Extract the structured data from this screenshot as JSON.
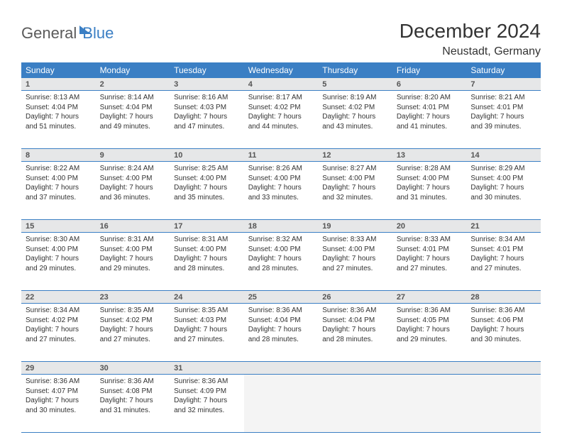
{
  "logo": {
    "part1": "General",
    "part2": "Blue"
  },
  "title": "December 2024",
  "subtitle": "Neustadt, Germany",
  "header_bg": "#3b7fc4",
  "header_fg": "#ffffff",
  "daynum_bg": "#e6e7e8",
  "row_border": "#3b7fc4",
  "font_family": "Arial",
  "columns": [
    "Sunday",
    "Monday",
    "Tuesday",
    "Wednesday",
    "Thursday",
    "Friday",
    "Saturday"
  ],
  "weeks": [
    [
      {
        "n": "1",
        "sunrise": "Sunrise: 8:13 AM",
        "sunset": "Sunset: 4:04 PM",
        "day": "Daylight: 7 hours and 51 minutes."
      },
      {
        "n": "2",
        "sunrise": "Sunrise: 8:14 AM",
        "sunset": "Sunset: 4:04 PM",
        "day": "Daylight: 7 hours and 49 minutes."
      },
      {
        "n": "3",
        "sunrise": "Sunrise: 8:16 AM",
        "sunset": "Sunset: 4:03 PM",
        "day": "Daylight: 7 hours and 47 minutes."
      },
      {
        "n": "4",
        "sunrise": "Sunrise: 8:17 AM",
        "sunset": "Sunset: 4:02 PM",
        "day": "Daylight: 7 hours and 44 minutes."
      },
      {
        "n": "5",
        "sunrise": "Sunrise: 8:19 AM",
        "sunset": "Sunset: 4:02 PM",
        "day": "Daylight: 7 hours and 43 minutes."
      },
      {
        "n": "6",
        "sunrise": "Sunrise: 8:20 AM",
        "sunset": "Sunset: 4:01 PM",
        "day": "Daylight: 7 hours and 41 minutes."
      },
      {
        "n": "7",
        "sunrise": "Sunrise: 8:21 AM",
        "sunset": "Sunset: 4:01 PM",
        "day": "Daylight: 7 hours and 39 minutes."
      }
    ],
    [
      {
        "n": "8",
        "sunrise": "Sunrise: 8:22 AM",
        "sunset": "Sunset: 4:00 PM",
        "day": "Daylight: 7 hours and 37 minutes."
      },
      {
        "n": "9",
        "sunrise": "Sunrise: 8:24 AM",
        "sunset": "Sunset: 4:00 PM",
        "day": "Daylight: 7 hours and 36 minutes."
      },
      {
        "n": "10",
        "sunrise": "Sunrise: 8:25 AM",
        "sunset": "Sunset: 4:00 PM",
        "day": "Daylight: 7 hours and 35 minutes."
      },
      {
        "n": "11",
        "sunrise": "Sunrise: 8:26 AM",
        "sunset": "Sunset: 4:00 PM",
        "day": "Daylight: 7 hours and 33 minutes."
      },
      {
        "n": "12",
        "sunrise": "Sunrise: 8:27 AM",
        "sunset": "Sunset: 4:00 PM",
        "day": "Daylight: 7 hours and 32 minutes."
      },
      {
        "n": "13",
        "sunrise": "Sunrise: 8:28 AM",
        "sunset": "Sunset: 4:00 PM",
        "day": "Daylight: 7 hours and 31 minutes."
      },
      {
        "n": "14",
        "sunrise": "Sunrise: 8:29 AM",
        "sunset": "Sunset: 4:00 PM",
        "day": "Daylight: 7 hours and 30 minutes."
      }
    ],
    [
      {
        "n": "15",
        "sunrise": "Sunrise: 8:30 AM",
        "sunset": "Sunset: 4:00 PM",
        "day": "Daylight: 7 hours and 29 minutes."
      },
      {
        "n": "16",
        "sunrise": "Sunrise: 8:31 AM",
        "sunset": "Sunset: 4:00 PM",
        "day": "Daylight: 7 hours and 29 minutes."
      },
      {
        "n": "17",
        "sunrise": "Sunrise: 8:31 AM",
        "sunset": "Sunset: 4:00 PM",
        "day": "Daylight: 7 hours and 28 minutes."
      },
      {
        "n": "18",
        "sunrise": "Sunrise: 8:32 AM",
        "sunset": "Sunset: 4:00 PM",
        "day": "Daylight: 7 hours and 28 minutes."
      },
      {
        "n": "19",
        "sunrise": "Sunrise: 8:33 AM",
        "sunset": "Sunset: 4:00 PM",
        "day": "Daylight: 7 hours and 27 minutes."
      },
      {
        "n": "20",
        "sunrise": "Sunrise: 8:33 AM",
        "sunset": "Sunset: 4:01 PM",
        "day": "Daylight: 7 hours and 27 minutes."
      },
      {
        "n": "21",
        "sunrise": "Sunrise: 8:34 AM",
        "sunset": "Sunset: 4:01 PM",
        "day": "Daylight: 7 hours and 27 minutes."
      }
    ],
    [
      {
        "n": "22",
        "sunrise": "Sunrise: 8:34 AM",
        "sunset": "Sunset: 4:02 PM",
        "day": "Daylight: 7 hours and 27 minutes."
      },
      {
        "n": "23",
        "sunrise": "Sunrise: 8:35 AM",
        "sunset": "Sunset: 4:02 PM",
        "day": "Daylight: 7 hours and 27 minutes."
      },
      {
        "n": "24",
        "sunrise": "Sunrise: 8:35 AM",
        "sunset": "Sunset: 4:03 PM",
        "day": "Daylight: 7 hours and 27 minutes."
      },
      {
        "n": "25",
        "sunrise": "Sunrise: 8:36 AM",
        "sunset": "Sunset: 4:04 PM",
        "day": "Daylight: 7 hours and 28 minutes."
      },
      {
        "n": "26",
        "sunrise": "Sunrise: 8:36 AM",
        "sunset": "Sunset: 4:04 PM",
        "day": "Daylight: 7 hours and 28 minutes."
      },
      {
        "n": "27",
        "sunrise": "Sunrise: 8:36 AM",
        "sunset": "Sunset: 4:05 PM",
        "day": "Daylight: 7 hours and 29 minutes."
      },
      {
        "n": "28",
        "sunrise": "Sunrise: 8:36 AM",
        "sunset": "Sunset: 4:06 PM",
        "day": "Daylight: 7 hours and 30 minutes."
      }
    ],
    [
      {
        "n": "29",
        "sunrise": "Sunrise: 8:36 AM",
        "sunset": "Sunset: 4:07 PM",
        "day": "Daylight: 7 hours and 30 minutes."
      },
      {
        "n": "30",
        "sunrise": "Sunrise: 8:36 AM",
        "sunset": "Sunset: 4:08 PM",
        "day": "Daylight: 7 hours and 31 minutes."
      },
      {
        "n": "31",
        "sunrise": "Sunrise: 8:36 AM",
        "sunset": "Sunset: 4:09 PM",
        "day": "Daylight: 7 hours and 32 minutes."
      },
      null,
      null,
      null,
      null
    ]
  ]
}
